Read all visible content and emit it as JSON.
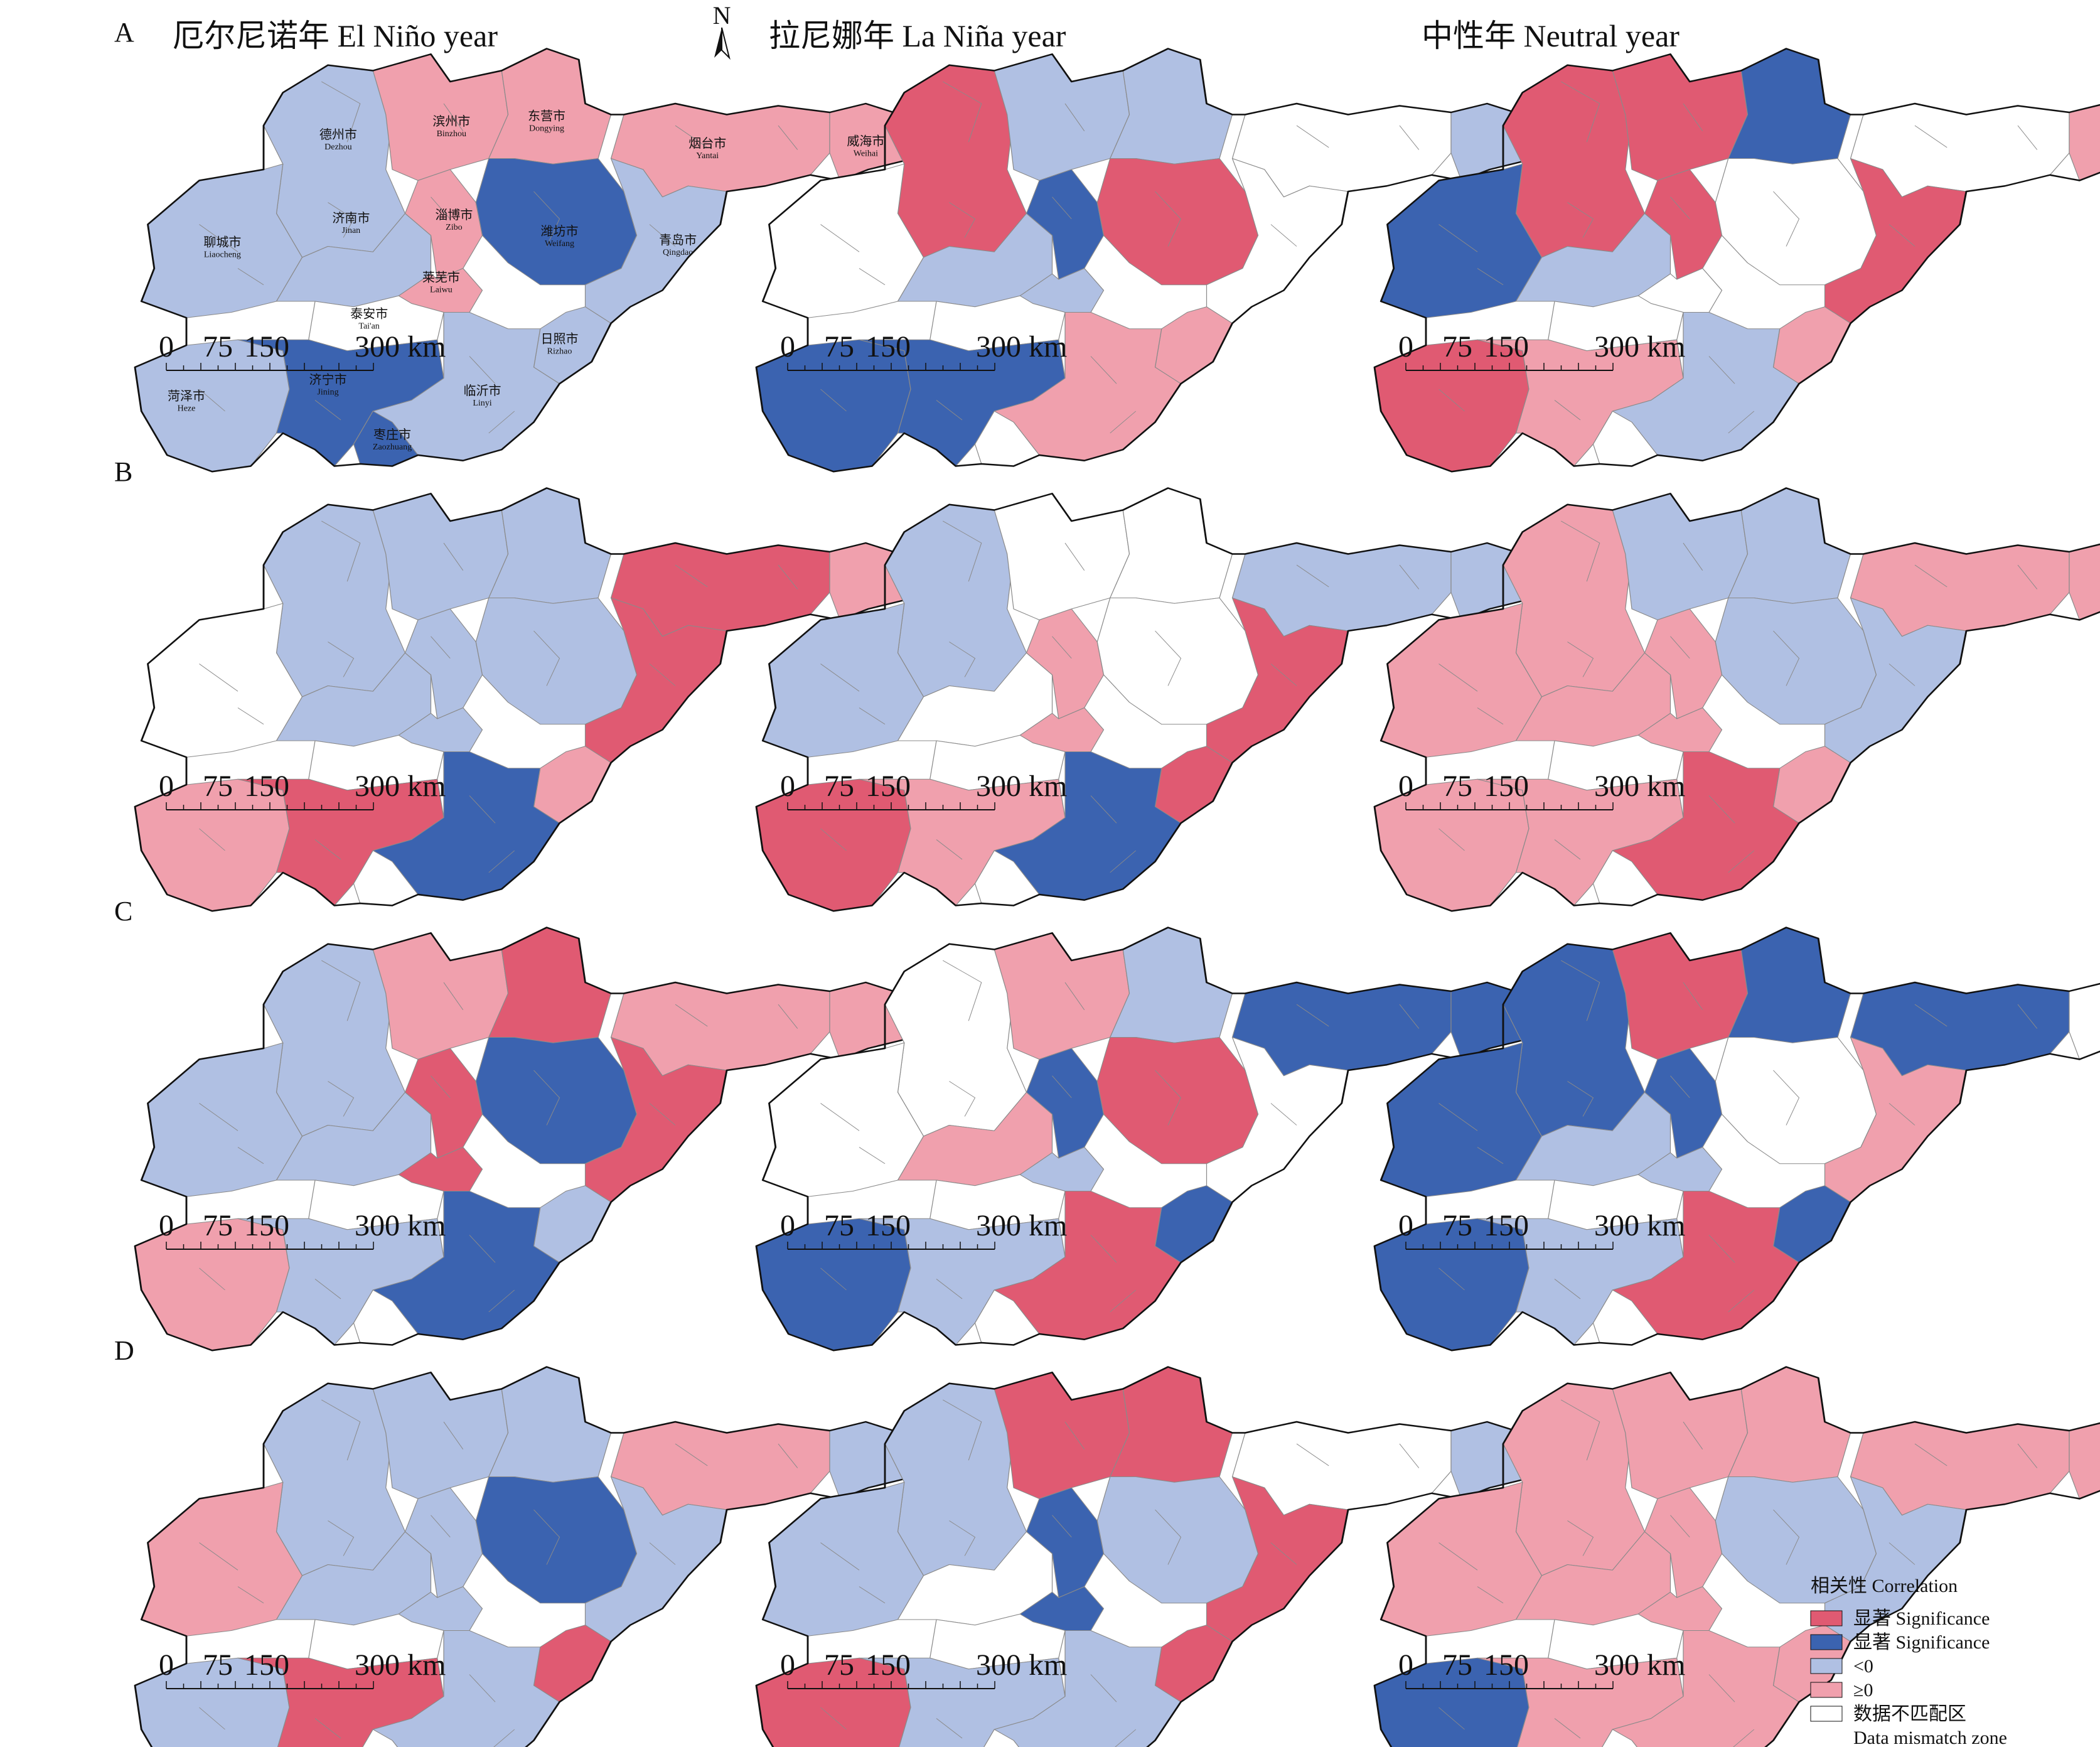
{
  "columns": [
    {
      "zh": "厄尔尼诺年",
      "en": "El Niño year"
    },
    {
      "zh": "拉尼娜年",
      "en": "La Niña year"
    },
    {
      "zh": "中性年",
      "en": "Neutral year"
    }
  ],
  "rows": [
    "A",
    "B",
    "C",
    "D"
  ],
  "north_label": "N",
  "scale_bar": {
    "labels": [
      "0",
      "75",
      "150",
      "300 km"
    ]
  },
  "colors": {
    "sig_pos": "#e05a72",
    "sig_neg": "#3b63b0",
    "neg": "#b0c0e3",
    "pos": "#f0a0ad",
    "mismatch": "#ffffff",
    "stroke": "#111111",
    "inner": "#8a8a8a"
  },
  "cities": [
    {
      "id": "dezhou",
      "zh": "德州市",
      "en": "Dezhou"
    },
    {
      "id": "binzhou",
      "zh": "滨州市",
      "en": "Binzhou"
    },
    {
      "id": "dongying",
      "zh": "东营市",
      "en": "Dongying"
    },
    {
      "id": "yantai",
      "zh": "烟台市",
      "en": "Yantai"
    },
    {
      "id": "weihai",
      "zh": "威海市",
      "en": "Weihai"
    },
    {
      "id": "liaocheng",
      "zh": "聊城市",
      "en": "Liaocheng"
    },
    {
      "id": "jinan",
      "zh": "济南市",
      "en": "Jinan"
    },
    {
      "id": "zibo",
      "zh": "淄博市",
      "en": "Zibo"
    },
    {
      "id": "weifang",
      "zh": "潍坊市",
      "en": "Weifang"
    },
    {
      "id": "qingdao",
      "zh": "青岛市",
      "en": "Qingdao"
    },
    {
      "id": "laiwu",
      "zh": "莱芜市",
      "en": "Laiwu"
    },
    {
      "id": "taian",
      "zh": "泰安市",
      "en": "Tai'an"
    },
    {
      "id": "rizhao",
      "zh": "日照市",
      "en": "Rizhao"
    },
    {
      "id": "heze",
      "zh": "菏泽市",
      "en": "Heze"
    },
    {
      "id": "jining",
      "zh": "济宁市",
      "en": "Jining"
    },
    {
      "id": "linyi",
      "zh": "临沂市",
      "en": "Linyi"
    },
    {
      "id": "zaozhuang",
      "zh": "枣庄市",
      "en": "Zaozhuang"
    }
  ],
  "maps": [
    {
      "row": "A",
      "col": 0,
      "classes": {
        "dezhou": "neg",
        "binzhou": "pos",
        "dongying": "pos",
        "yantai": "pos",
        "weihai": "pos",
        "liaocheng": "neg",
        "jinan": "neg",
        "zibo": "pos",
        "weifang": "sig_neg",
        "qingdao": "neg",
        "laiwu": "pos",
        "taian": "mismatch",
        "rizhao": "neg",
        "heze": "neg",
        "jining": "sig_neg",
        "linyi": "neg",
        "zaozhuang": "sig_neg"
      }
    },
    {
      "row": "A",
      "col": 1,
      "classes": {
        "dezhou": "sig_pos",
        "binzhou": "neg",
        "dongying": "neg",
        "yantai": "mismatch",
        "weihai": "neg",
        "liaocheng": "mismatch",
        "jinan": "neg",
        "zibo": "sig_neg",
        "weifang": "sig_pos",
        "qingdao": "mismatch",
        "laiwu": "neg",
        "taian": "mismatch",
        "rizhao": "pos",
        "heze": "sig_neg",
        "jining": "sig_neg",
        "linyi": "pos",
        "zaozhuang": "mismatch"
      }
    },
    {
      "row": "A",
      "col": 2,
      "classes": {
        "dezhou": "sig_pos",
        "binzhou": "sig_pos",
        "dongying": "sig_neg",
        "yantai": "mismatch",
        "weihai": "pos",
        "liaocheng": "sig_neg",
        "jinan": "neg",
        "zibo": "sig_pos",
        "weifang": "mismatch",
        "qingdao": "sig_pos",
        "laiwu": "mismatch",
        "taian": "mismatch",
        "rizhao": "pos",
        "heze": "sig_pos",
        "jining": "pos",
        "linyi": "neg",
        "zaozhuang": "mismatch"
      }
    },
    {
      "row": "B",
      "col": 0,
      "classes": {
        "dezhou": "neg",
        "binzhou": "neg",
        "dongying": "neg",
        "yantai": "sig_pos",
        "weihai": "pos",
        "liaocheng": "mismatch",
        "jinan": "neg",
        "zibo": "neg",
        "weifang": "neg",
        "qingdao": "sig_pos",
        "laiwu": "neg",
        "taian": "mismatch",
        "rizhao": "pos",
        "heze": "pos",
        "jining": "sig_pos",
        "linyi": "sig_neg",
        "zaozhuang": "mismatch"
      }
    },
    {
      "row": "B",
      "col": 1,
      "classes": {
        "dezhou": "neg",
        "binzhou": "mismatch",
        "dongying": "mismatch",
        "yantai": "neg",
        "weihai": "neg",
        "liaocheng": "neg",
        "jinan": "mismatch",
        "zibo": "pos",
        "weifang": "mismatch",
        "qingdao": "sig_pos",
        "laiwu": "pos",
        "taian": "mismatch",
        "rizhao": "sig_pos",
        "heze": "sig_pos",
        "jining": "pos",
        "linyi": "sig_neg",
        "zaozhuang": "mismatch"
      }
    },
    {
      "row": "B",
      "col": 2,
      "classes": {
        "dezhou": "pos",
        "binzhou": "neg",
        "dongying": "neg",
        "yantai": "pos",
        "weihai": "pos",
        "liaocheng": "pos",
        "jinan": "pos",
        "zibo": "pos",
        "weifang": "neg",
        "qingdao": "neg",
        "laiwu": "pos",
        "taian": "mismatch",
        "rizhao": "pos",
        "heze": "pos",
        "jining": "pos",
        "linyi": "sig_pos",
        "zaozhuang": "mismatch"
      }
    },
    {
      "row": "C",
      "col": 0,
      "classes": {
        "dezhou": "neg",
        "binzhou": "pos",
        "dongying": "sig_pos",
        "yantai": "pos",
        "weihai": "pos",
        "liaocheng": "neg",
        "jinan": "neg",
        "zibo": "sig_pos",
        "weifang": "sig_neg",
        "qingdao": "sig_pos",
        "laiwu": "sig_pos",
        "taian": "mismatch",
        "rizhao": "neg",
        "heze": "pos",
        "jining": "neg",
        "linyi": "sig_neg",
        "zaozhuang": "mismatch"
      }
    },
    {
      "row": "C",
      "col": 1,
      "classes": {
        "dezhou": "mismatch",
        "binzhou": "pos",
        "dongying": "neg",
        "yantai": "sig_neg",
        "weihai": "sig_neg",
        "liaocheng": "mismatch",
        "jinan": "pos",
        "zibo": "sig_neg",
        "weifang": "sig_pos",
        "qingdao": "mismatch",
        "laiwu": "neg",
        "taian": "mismatch",
        "rizhao": "sig_neg",
        "heze": "sig_neg",
        "jining": "neg",
        "linyi": "sig_pos",
        "zaozhuang": "mismatch"
      }
    },
    {
      "row": "C",
      "col": 2,
      "classes": {
        "dezhou": "sig_neg",
        "binzhou": "sig_pos",
        "dongying": "sig_neg",
        "yantai": "sig_neg",
        "weihai": "mismatch",
        "liaocheng": "sig_neg",
        "jinan": "neg",
        "zibo": "sig_neg",
        "weifang": "mismatch",
        "qingdao": "pos",
        "laiwu": "neg",
        "taian": "mismatch",
        "rizhao": "sig_neg",
        "heze": "sig_neg",
        "jining": "neg",
        "linyi": "sig_pos",
        "zaozhuang": "mismatch"
      }
    },
    {
      "row": "D",
      "col": 0,
      "classes": {
        "dezhou": "neg",
        "binzhou": "neg",
        "dongying": "neg",
        "yantai": "pos",
        "weihai": "neg",
        "liaocheng": "pos",
        "jinan": "neg",
        "zibo": "neg",
        "weifang": "sig_neg",
        "qingdao": "neg",
        "laiwu": "neg",
        "taian": "mismatch",
        "rizhao": "sig_pos",
        "heze": "neg",
        "jining": "sig_pos",
        "linyi": "neg",
        "zaozhuang": "mismatch"
      }
    },
    {
      "row": "D",
      "col": 1,
      "classes": {
        "dezhou": "neg",
        "binzhou": "sig_pos",
        "dongying": "sig_pos",
        "yantai": "mismatch",
        "weihai": "neg",
        "liaocheng": "neg",
        "jinan": "mismatch",
        "zibo": "sig_neg",
        "weifang": "neg",
        "qingdao": "sig_pos",
        "laiwu": "sig_neg",
        "taian": "mismatch",
        "rizhao": "sig_pos",
        "heze": "sig_pos",
        "jining": "neg",
        "linyi": "neg",
        "zaozhuang": "mismatch"
      }
    },
    {
      "row": "D",
      "col": 2,
      "classes": {
        "dezhou": "pos",
        "binzhou": "pos",
        "dongying": "pos",
        "yantai": "pos",
        "weihai": "pos",
        "liaocheng": "pos",
        "jinan": "pos",
        "zibo": "pos",
        "weifang": "neg",
        "qingdao": "neg",
        "laiwu": "pos",
        "taian": "mismatch",
        "rizhao": "pos",
        "heze": "sig_neg",
        "jining": "pos",
        "linyi": "pos",
        "zaozhuang": "mismatch"
      }
    }
  ],
  "legend": {
    "title": "相关性 Correlation",
    "items": [
      {
        "key": "sig_pos",
        "label": "显著 Significance"
      },
      {
        "key": "sig_neg",
        "label": "显著 Significance"
      },
      {
        "key": "neg",
        "label": "<0"
      },
      {
        "key": "pos",
        "label": "≥0"
      },
      {
        "key": "mismatch",
        "label": "数据不匹配区",
        "label2": "Data mismatch zone"
      }
    ]
  }
}
